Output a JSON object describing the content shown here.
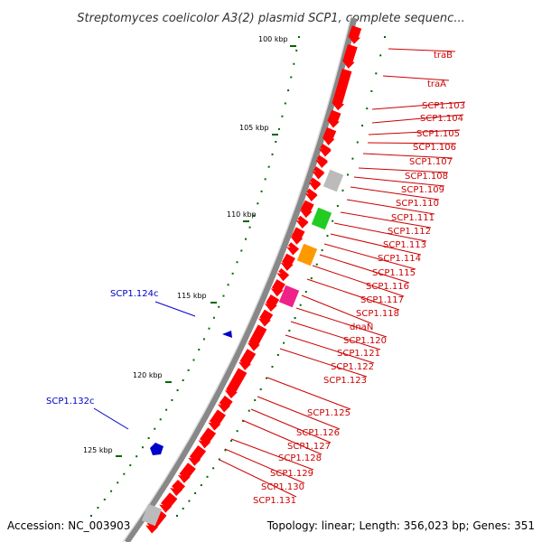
{
  "title": "Streptomyces coelicolor A3(2) plasmid SCP1, complete sequenc...",
  "footer": {
    "accession": "Accession: NC_003903",
    "summary": "Topology: linear; Length: 356,023 bp; Genes: 351"
  },
  "kbp_labels": [
    "100 kbp",
    "105 kbp",
    "110 kbp",
    "115 kbp",
    "120 kbp",
    "125 kbp"
  ],
  "forward_genes": [
    "traB",
    "traA",
    "SCP1.103",
    "SCP1.104",
    "SCP1.105",
    "SCP1.106",
    "SCP1.107",
    "SCP1.108",
    "SCP1.109",
    "SCP1.110",
    "SCP1.111",
    "SCP1.112",
    "SCP1.113",
    "SCP1.114",
    "SCP1.115",
    "SCP1.116",
    "SCP1.117",
    "SCP1.118",
    "dnaN",
    "SCP1.120",
    "SCP1.121",
    "SCP1.122",
    "SCP1.123",
    "SCP1.125",
    "SCP1.126",
    "SCP1.127",
    "SCP1.128",
    "SCP1.129",
    "SCP1.130",
    "SCP1.131"
  ],
  "reverse_genes": [
    "SCP1.124c",
    "SCP1.132c"
  ],
  "colors": {
    "forward": "#cc0000",
    "reverse": "#0000cc",
    "gene_fill": "#ff0000",
    "backbone": "#808080",
    "tick": "#006600",
    "grey_gene": "#bbbbbb",
    "green_gene": "#22cc22",
    "orange_gene": "#ff9900",
    "magenta_gene": "#ee2288"
  }
}
